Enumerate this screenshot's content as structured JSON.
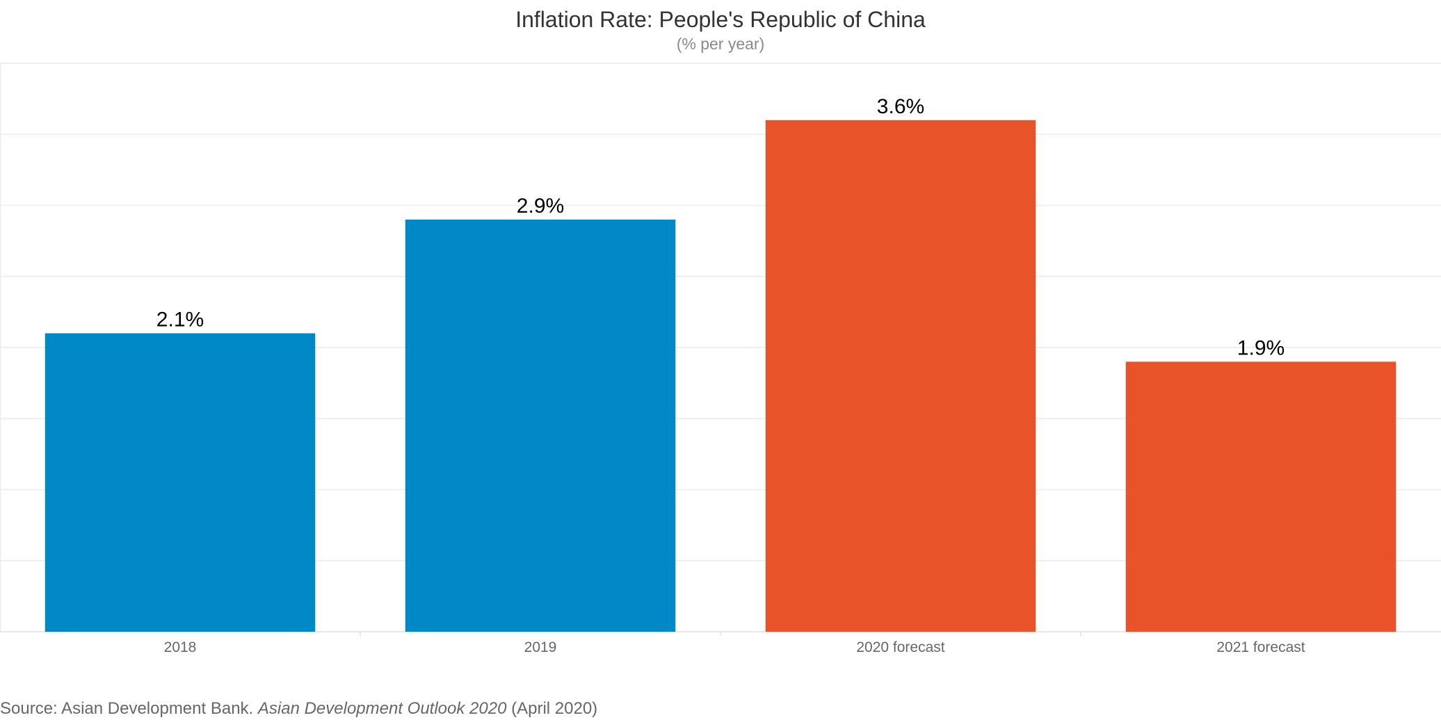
{
  "chart_data": {
    "type": "bar",
    "title": "Inflation Rate: People's Republic of China",
    "subtitle": "(% per year)",
    "categories": [
      "2018",
      "2019",
      "2020 forecast",
      "2021 forecast"
    ],
    "values": [
      2.1,
      2.9,
      3.6,
      1.9
    ],
    "value_labels": [
      "2.1%",
      "2.9%",
      "3.6%",
      "1.9%"
    ],
    "bar_colors": [
      "#0088c7",
      "#0088c7",
      "#e8532a",
      "#e8532a"
    ],
    "ylim": [
      0,
      4.0
    ],
    "xlabel": "",
    "ylabel": "",
    "grid": true,
    "legend": "none"
  },
  "source": {
    "prefix": "Source: Asian Development Bank. ",
    "publication": "Asian Development Outlook 2020",
    "suffix": " (April 2020)"
  }
}
